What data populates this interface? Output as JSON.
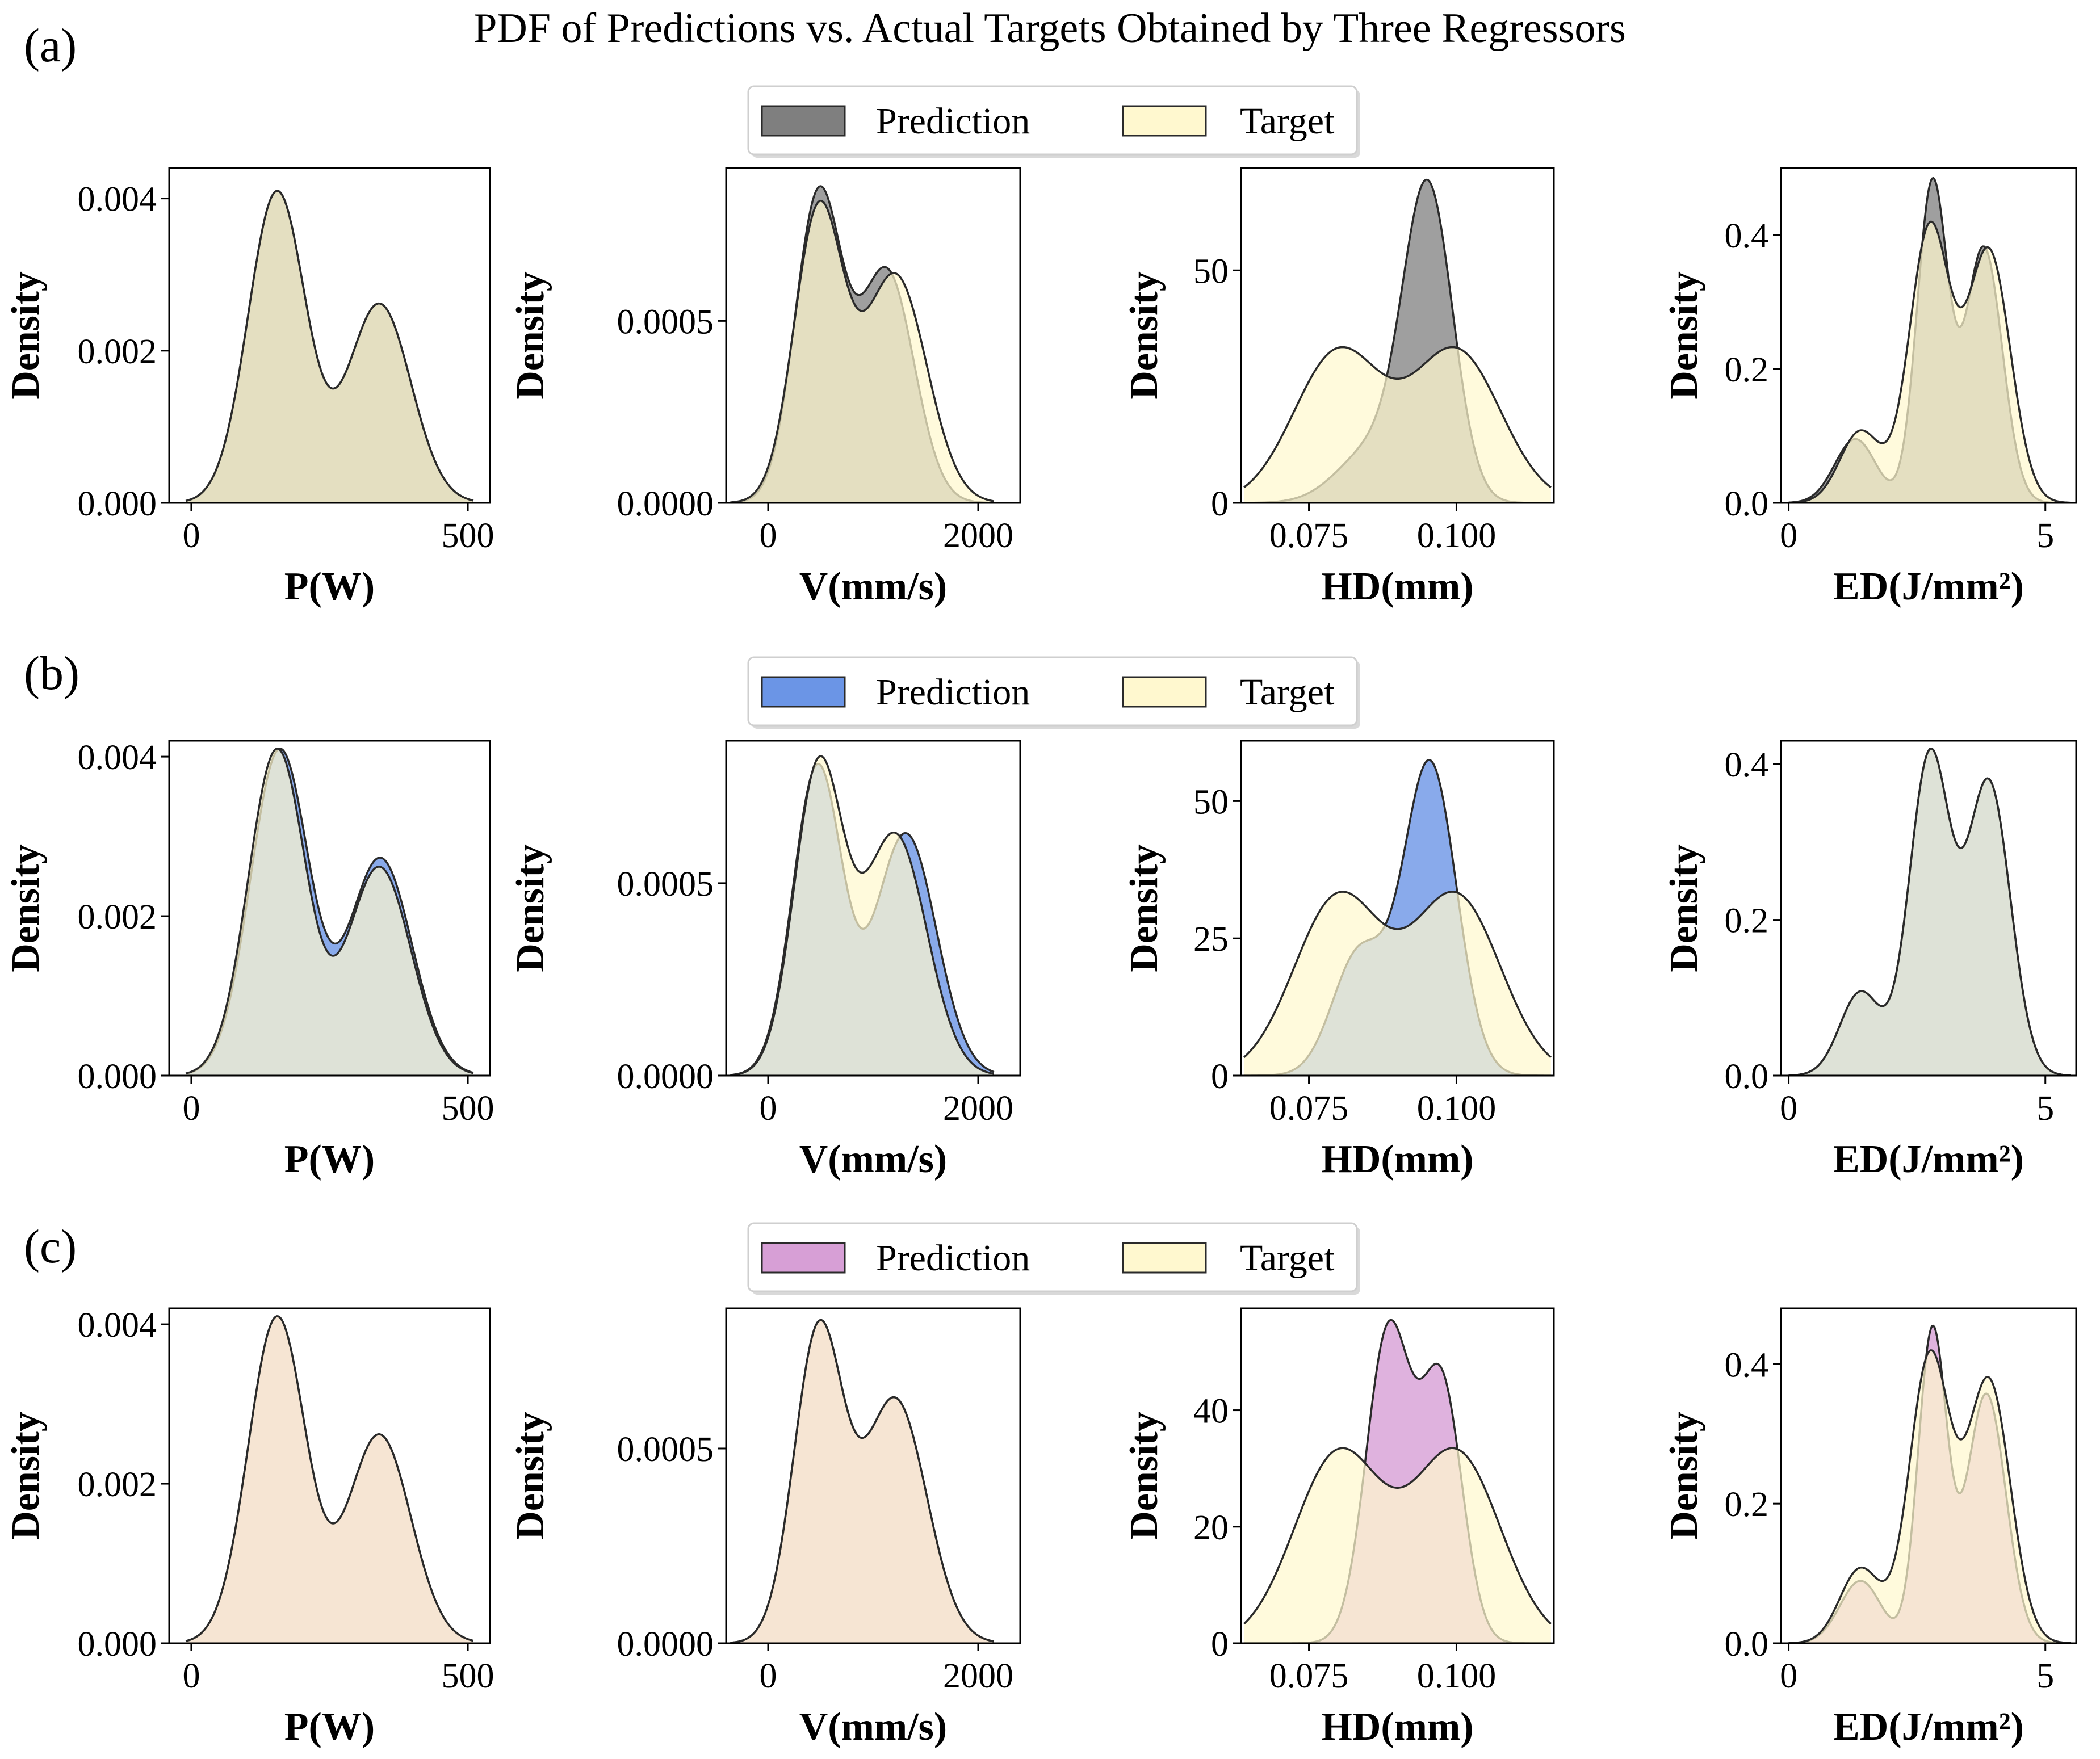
{
  "chart_data": {
    "type": "area",
    "title": "PDF of Predictions vs. Actual Targets Obtained by Three Regressors",
    "legend": {
      "prediction_label": "Prediction",
      "target_label": "Target",
      "placement": "top-center"
    },
    "target_color": "#fff8cf",
    "edge_color": "#2a2a2a",
    "columns": [
      {
        "id": "P",
        "xlabel": "P(W)",
        "ylabel": "Density",
        "xlim": [
          -40,
          540
        ],
        "xticks": [
          0,
          500
        ],
        "tick_decimals": 0,
        "support": [
          -10,
          510
        ],
        "kernels": [
          [
            155,
            52,
            0.61
          ],
          [
            340,
            57,
            0.39
          ]
        ]
      },
      {
        "id": "V",
        "xlabel": "V(mm/s)",
        "ylabel": "Density",
        "xlim": [
          -400,
          2400
        ],
        "xticks": [
          0,
          2000
        ],
        "tick_decimals": 0,
        "support": [
          -360,
          2150
        ],
        "kernels": [
          [
            480,
            235,
            0.56
          ],
          [
            1210,
            300,
            0.44
          ]
        ]
      },
      {
        "id": "HD",
        "xlabel": "HD(mm)",
        "ylabel": "Density",
        "xlim": [
          0.0635,
          0.1165
        ],
        "xticks": [
          0.075,
          0.1
        ],
        "tick_decimals": 3,
        "support": [
          0.064,
          0.116
        ],
        "kernels": [
          [
            0.08,
            0.0075,
            0.5
          ],
          [
            0.1,
            0.0075,
            0.5
          ]
        ]
      },
      {
        "id": "ED",
        "xlabel": "ED(J/mm²)",
        "ylabel": "Density",
        "xlim": [
          -0.15,
          5.6
        ],
        "xticks": [
          0,
          5
        ],
        "tick_decimals": 0,
        "support": [
          0,
          5.5
        ],
        "kernels": [
          [
            1.4,
            0.4,
            0.12
          ],
          [
            2.75,
            0.4,
            0.46
          ],
          [
            3.9,
            0.42,
            0.42
          ]
        ]
      }
    ],
    "rows": [
      {
        "label": "(a)",
        "prediction_color": "#7f7f7f",
        "prediction_alpha": 0.75,
        "panels": [
          {
            "ylim": [
              0,
              0.0044
            ],
            "yticks": [
              0,
              0.002,
              0.004
            ],
            "tick_decimals": 3,
            "target_peak": 0.0041,
            "prediction_peak": 0.0041,
            "prediction_kernels": [
              [
                155,
                52,
                0.61
              ],
              [
                340,
                57,
                0.39
              ]
            ]
          },
          {
            "ylim": [
              0,
              0.00092
            ],
            "yticks": [
              0,
              0.0005
            ],
            "tick_decimals": 4,
            "target_peak": 0.00083,
            "prediction_peak": 0.00087,
            "prediction_kernels": [
              [
                480,
                225,
                0.57
              ],
              [
                1130,
                260,
                0.43
              ]
            ]
          },
          {
            "ylim": [
              0,
              72
            ],
            "yticks": [
              0,
              50
            ],
            "tick_decimals": 0,
            "target_peak": 33.5,
            "prediction_peak": 69.5,
            "prediction_kernels": [
              [
                0.0952,
                0.0042,
                0.85
              ],
              [
                0.086,
                0.006,
                0.15
              ]
            ]
          },
          {
            "ylim": [
              0,
              0.5
            ],
            "yticks": [
              0,
              0.2,
              0.4
            ],
            "tick_decimals": 1,
            "target_peak": 0.42,
            "prediction_peak": 0.485,
            "prediction_kernels": [
              [
                1.3,
                0.4,
                0.1
              ],
              [
                2.8,
                0.3,
                0.5
              ],
              [
                3.8,
                0.36,
                0.4
              ]
            ]
          }
        ]
      },
      {
        "label": "(b)",
        "prediction_color": "#6b95e6",
        "prediction_alpha": 0.8,
        "panels": [
          {
            "ylim": [
              0,
              0.0042
            ],
            "yticks": [
              0,
              0.002,
              0.004
            ],
            "tick_decimals": 3,
            "target_peak": 0.0041,
            "prediction_peak": 0.0041,
            "prediction_kernels": [
              [
                160,
                53,
                0.6
              ],
              [
                342,
                57,
                0.4
              ]
            ]
          },
          {
            "ylim": [
              0,
              0.00087
            ],
            "yticks": [
              0,
              0.0005
            ],
            "tick_decimals": 4,
            "target_peak": 0.00083,
            "prediction_peak": 0.00081,
            "prediction_kernels": [
              [
                470,
                235,
                0.56
              ],
              [
                1310,
                290,
                0.44
              ]
            ]
          },
          {
            "ylim": [
              0,
              61
            ],
            "yticks": [
              0,
              25,
              50
            ],
            "tick_decimals": 0,
            "target_peak": 33.5,
            "prediction_peak": 57.5,
            "prediction_kernels": [
              [
                0.0955,
                0.0045,
                0.72
              ],
              [
                0.0835,
                0.0045,
                0.28
              ]
            ]
          },
          {
            "ylim": [
              0,
              0.43
            ],
            "yticks": [
              0,
              0.2,
              0.4
            ],
            "tick_decimals": 1,
            "target_peak": 0.42,
            "prediction_peak": 0.42,
            "prediction_kernels": [
              [
                1.4,
                0.4,
                0.12
              ],
              [
                2.75,
                0.4,
                0.46
              ],
              [
                3.9,
                0.42,
                0.42
              ]
            ]
          }
        ]
      },
      {
        "label": "(c)",
        "prediction_color": "#d79fd6",
        "prediction_alpha": 0.8,
        "panels": [
          {
            "ylim": [
              0,
              0.0042
            ],
            "yticks": [
              0,
              0.002,
              0.004
            ],
            "tick_decimals": 3,
            "target_peak": 0.0041,
            "prediction_peak": 0.0041,
            "prediction_kernels": [
              [
                155,
                52,
                0.61
              ],
              [
                340,
                57,
                0.39
              ]
            ]
          },
          {
            "ylim": [
              0,
              0.00086
            ],
            "yticks": [
              0,
              0.0005
            ],
            "tick_decimals": 4,
            "target_peak": 0.00083,
            "prediction_peak": 0.00083,
            "prediction_kernels": [
              [
                480,
                235,
                0.56
              ],
              [
                1210,
                300,
                0.44
              ]
            ]
          },
          {
            "ylim": [
              0,
              57.5
            ],
            "yticks": [
              0,
              20,
              40
            ],
            "tick_decimals": 0,
            "target_peak": 33.5,
            "prediction_peak": 55.5,
            "prediction_kernels": [
              [
                0.0885,
                0.0038,
                0.55
              ],
              [
                0.0975,
                0.0035,
                0.45
              ]
            ]
          },
          {
            "ylim": [
              0,
              0.48
            ],
            "yticks": [
              0,
              0.2,
              0.4
            ],
            "tick_decimals": 1,
            "target_peak": 0.42,
            "prediction_peak": 0.455,
            "prediction_kernels": [
              [
                1.4,
                0.4,
                0.1
              ],
              [
                2.8,
                0.28,
                0.5
              ],
              [
                3.85,
                0.38,
                0.4
              ]
            ]
          }
        ]
      }
    ]
  }
}
